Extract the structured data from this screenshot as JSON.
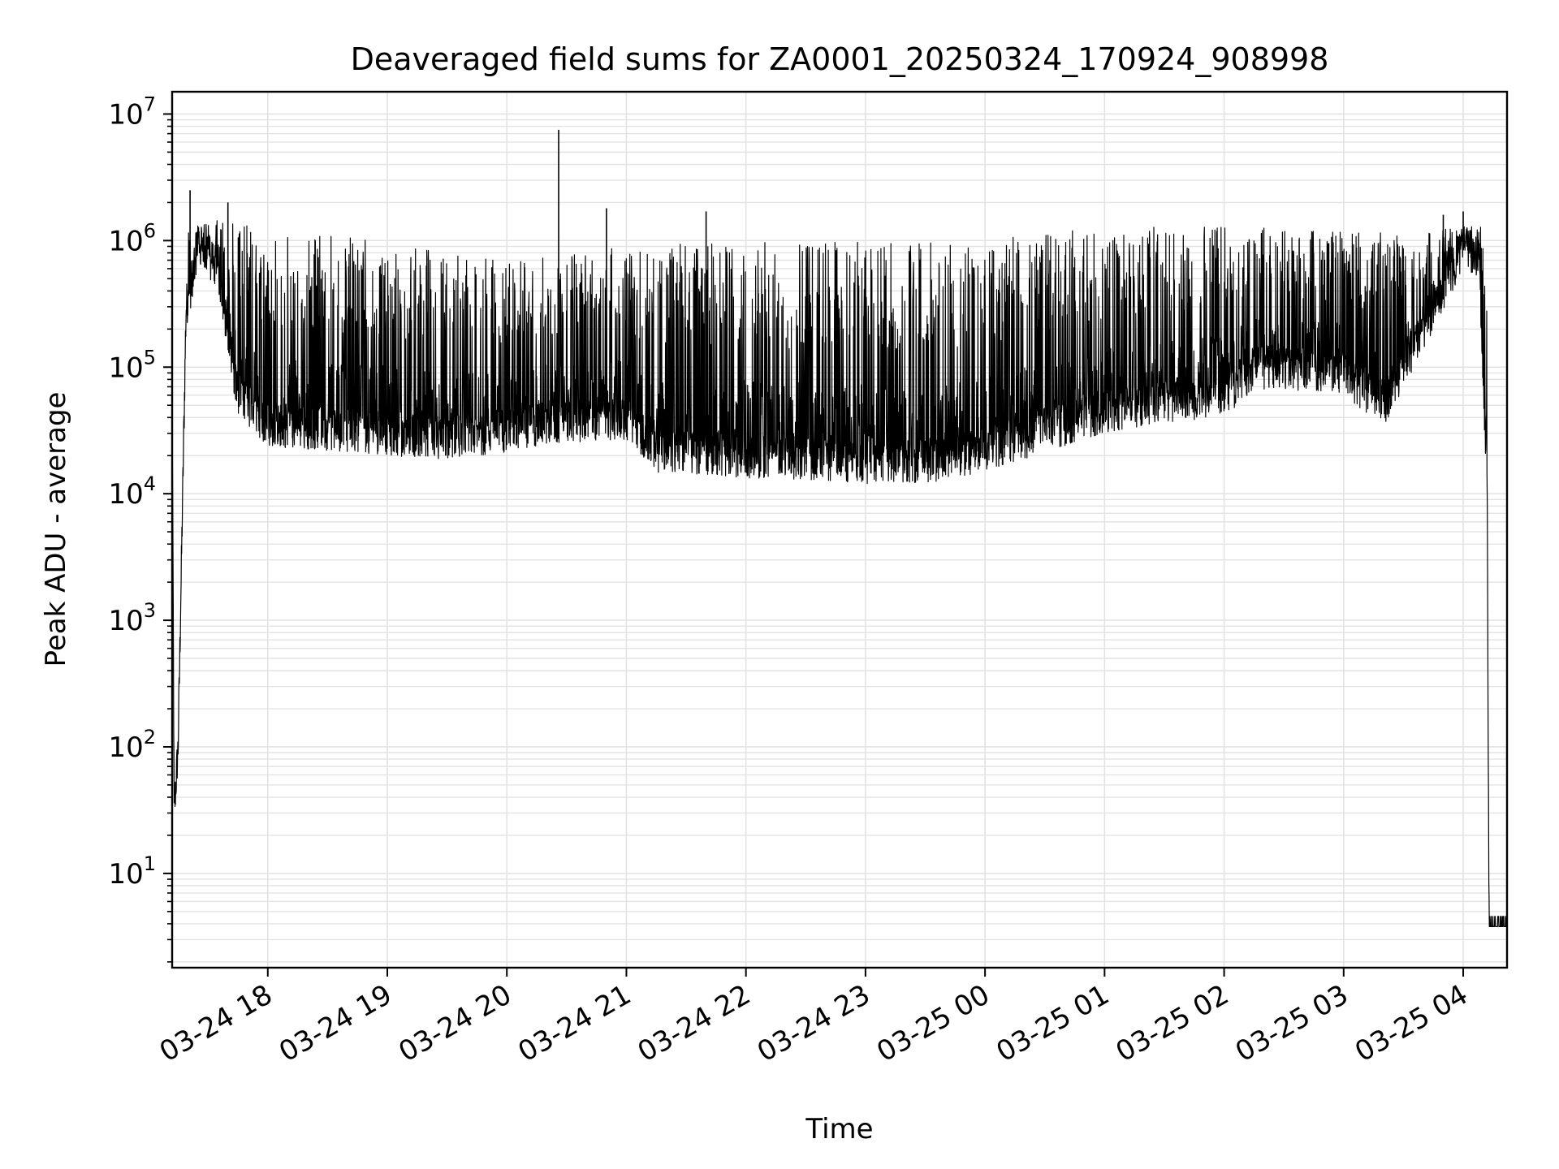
{
  "chart_data": {
    "type": "line",
    "title": "Deaveraged field sums for ZA0001_20250324_170924_908998",
    "xlabel": "Time",
    "ylabel": "Peak ADU - average",
    "yscale": "log",
    "ylim": [
      1.8,
      15000000
    ],
    "xlim": [
      "2025-03-24 17:12",
      "2025-03-25 04:22"
    ],
    "grid": true,
    "line_color": "#000000",
    "x_ticks": [
      {
        "value": "2025-03-24 18:00",
        "label": "03-24 18"
      },
      {
        "value": "2025-03-24 19:00",
        "label": "03-24 19"
      },
      {
        "value": "2025-03-24 20:00",
        "label": "03-24 20"
      },
      {
        "value": "2025-03-24 21:00",
        "label": "03-24 21"
      },
      {
        "value": "2025-03-24 22:00",
        "label": "03-24 22"
      },
      {
        "value": "2025-03-24 23:00",
        "label": "03-24 23"
      },
      {
        "value": "2025-03-25 00:00",
        "label": "03-25 00"
      },
      {
        "value": "2025-03-25 01:00",
        "label": "03-25 01"
      },
      {
        "value": "2025-03-25 02:00",
        "label": "03-25 02"
      },
      {
        "value": "2025-03-25 03:00",
        "label": "03-25 03"
      },
      {
        "value": "2025-03-25 04:00",
        "label": "03-25 04"
      }
    ],
    "y_ticks": [
      {
        "value": 10,
        "base": "10",
        "exp": "1"
      },
      {
        "value": 100,
        "base": "10",
        "exp": "2"
      },
      {
        "value": 1000,
        "base": "10",
        "exp": "3"
      },
      {
        "value": 10000,
        "base": "10",
        "exp": "4"
      },
      {
        "value": 100000,
        "base": "10",
        "exp": "5"
      },
      {
        "value": 1000000,
        "base": "10",
        "exp": "6"
      },
      {
        "value": 10000000,
        "base": "10",
        "exp": "7"
      }
    ],
    "series": [
      {
        "envelope": {
          "baseline": [
            [
              "2025-03-24 17:12",
              80000
            ],
            [
              "2025-03-24 17:13",
              30
            ],
            [
              "2025-03-24 17:15",
              100
            ],
            [
              "2025-03-24 17:19",
              300000
            ],
            [
              "2025-03-24 17:25",
              800000
            ],
            [
              "2025-03-24 17:35",
              600000
            ],
            [
              "2025-03-24 17:45",
              60000
            ],
            [
              "2025-03-24 18:00",
              35000
            ],
            [
              "2025-03-24 18:30",
              33000
            ],
            [
              "2025-03-24 19:00",
              30000
            ],
            [
              "2025-03-24 19:30",
              28000
            ],
            [
              "2025-03-24 20:00",
              32000
            ],
            [
              "2025-03-24 20:30",
              38000
            ],
            [
              "2025-03-24 21:00",
              40000
            ],
            [
              "2025-03-24 21:15",
              22000
            ],
            [
              "2025-03-24 21:30",
              21000
            ],
            [
              "2025-03-24 22:00",
              20000
            ],
            [
              "2025-03-24 22:30",
              19000
            ],
            [
              "2025-03-24 23:00",
              18000
            ],
            [
              "2025-03-24 23:30",
              18000
            ],
            [
              "2025-03-25 00:00",
              22000
            ],
            [
              "2025-03-25 00:30",
              32000
            ],
            [
              "2025-03-25 01:00",
              45000
            ],
            [
              "2025-03-25 01:30",
              55000
            ],
            [
              "2025-03-25 02:00",
              60000
            ],
            [
              "2025-03-25 02:15",
              100000
            ],
            [
              "2025-03-25 02:30",
              100000
            ],
            [
              "2025-03-25 03:00",
              90000
            ],
            [
              "2025-03-25 03:20",
              50000
            ],
            [
              "2025-03-25 03:40",
              200000
            ],
            [
              "2025-03-25 04:00",
              900000
            ],
            [
              "2025-03-25 04:08",
              700000
            ],
            [
              "2025-03-25 04:12",
              10000
            ],
            [
              "2025-03-25 04:13",
              3.8
            ],
            [
              "2025-03-25 04:22",
              3.8
            ]
          ],
          "spike_top": [
            [
              "2025-03-24 17:20",
              1300000
            ],
            [
              "2025-03-24 17:40",
              1500000
            ],
            [
              "2025-03-24 18:00",
              1200000
            ],
            [
              "2025-03-24 19:00",
              1000000
            ],
            [
              "2025-03-24 20:00",
              700000
            ],
            [
              "2025-03-24 21:00",
              900000
            ],
            [
              "2025-03-24 22:00",
              1000000
            ],
            [
              "2025-03-24 23:00",
              1000000
            ],
            [
              "2025-03-25 00:00",
              1000000
            ],
            [
              "2025-03-25 01:00",
              1300000
            ],
            [
              "2025-03-25 02:00",
              1300000
            ],
            [
              "2025-03-25 03:00",
              1200000
            ],
            [
              "2025-03-25 04:00",
              1300000
            ]
          ]
        },
        "notable_points": [
          {
            "x": "2025-03-24 17:21",
            "y": 2500000
          },
          {
            "x": "2025-03-24 17:40",
            "y": 2000000
          },
          {
            "x": "2025-03-24 20:26",
            "y": 7500000
          },
          {
            "x": "2025-03-24 20:50",
            "y": 1800000
          },
          {
            "x": "2025-03-24 21:40",
            "y": 1700000
          },
          {
            "x": "2025-03-25 03:50",
            "y": 1600000
          },
          {
            "x": "2025-03-25 04:00",
            "y": 1700000
          }
        ]
      }
    ]
  }
}
